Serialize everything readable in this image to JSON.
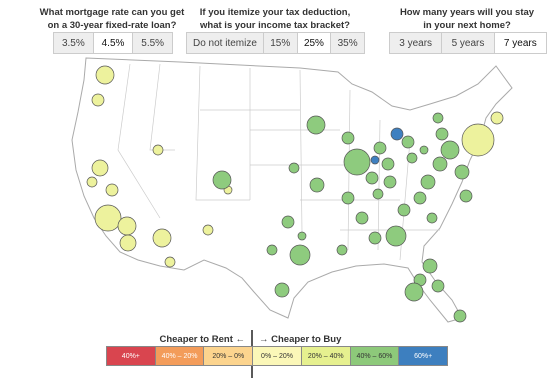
{
  "controls": [
    {
      "question": [
        "What mortgage rate can you get",
        "on a 30-year fixed-rate loan?"
      ],
      "options": [
        "3.5%",
        "4.5%",
        "5.5%"
      ],
      "selected": 1
    },
    {
      "question": [
        "If you itemize your tax deduction,",
        "what is your income tax bracket?"
      ],
      "options": [
        "Do not itemize",
        "15%",
        "25%",
        "35%"
      ],
      "selected": 2
    },
    {
      "question": [
        "How many years will you stay",
        "in your next home?"
      ],
      "options": [
        "3 years",
        "5 years",
        "7 years"
      ],
      "selected": 2
    }
  ],
  "legend": {
    "rent_label": "Cheaper to Rent",
    "rent_arrow": "←",
    "buy_arrow": "→",
    "buy_label": "Cheaper to Buy",
    "bins": [
      {
        "label": "40%+",
        "color": "#d9454f"
      },
      {
        "label": "40% – 20%",
        "color": "#f39c5a"
      },
      {
        "label": "20% – 0%",
        "color": "#fcd48e"
      },
      {
        "label": "0% – 20%",
        "color": "#fbf7b8"
      },
      {
        "label": "20% – 40%",
        "color": "#e6f08f"
      },
      {
        "label": "40% – 60%",
        "color": "#8dc97a"
      },
      {
        "label": "60%+",
        "color": "#3d7fbf"
      }
    ]
  }
}
